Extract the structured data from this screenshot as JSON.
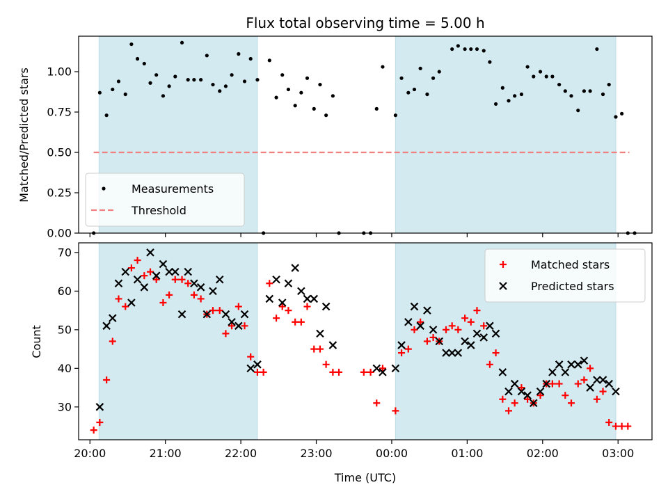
{
  "chart_data": [
    {
      "type": "scatter",
      "title": "Flux total observing time = 5.00 h",
      "xlabel": "",
      "ylabel": "Matched/Predicted stars",
      "ylim": [
        0,
        1.22
      ],
      "yticks": [
        0.0,
        0.25,
        0.5,
        0.75,
        1.0
      ],
      "ytick_labels": [
        "0.00",
        "0.25",
        "0.50",
        "0.75",
        "1.00"
      ],
      "xlim": [
        -0.15,
        7.45
      ],
      "xticks": [
        0,
        1,
        2,
        3,
        4,
        5,
        6,
        7
      ],
      "xtick_labels": [
        "",
        "",
        "",
        "",
        "",
        "",
        "",
        ""
      ],
      "shaded_regions": [
        [
          0.12,
          2.22
        ],
        [
          4.05,
          6.97
        ]
      ],
      "shade_color": "#d3eaf0",
      "legend_position": "lower-left",
      "series": [
        {
          "name": "Measurements",
          "marker": "dot",
          "color": "#000000",
          "points": [
            [
              0.05,
              0.0
            ],
            [
              0.13,
              0.87
            ],
            [
              0.22,
              0.73
            ],
            [
              0.3,
              0.89
            ],
            [
              0.38,
              0.94
            ],
            [
              0.47,
              0.86
            ],
            [
              0.55,
              1.17
            ],
            [
              0.63,
              1.08
            ],
            [
              0.72,
              1.05
            ],
            [
              0.8,
              0.93
            ],
            [
              0.88,
              0.98
            ],
            [
              0.97,
              0.85
            ],
            [
              1.05,
              0.91
            ],
            [
              1.13,
              0.97
            ],
            [
              1.22,
              1.18
            ],
            [
              1.3,
              0.95
            ],
            [
              1.38,
              0.95
            ],
            [
              1.47,
              0.95
            ],
            [
              1.55,
              1.1
            ],
            [
              1.63,
              0.92
            ],
            [
              1.72,
              0.88
            ],
            [
              1.8,
              0.91
            ],
            [
              1.88,
              0.98
            ],
            [
              1.97,
              1.11
            ],
            [
              2.05,
              0.94
            ],
            [
              2.13,
              1.08
            ],
            [
              2.22,
              0.95
            ],
            [
              2.3,
              0.0
            ],
            [
              2.38,
              1.07
            ],
            [
              2.47,
              0.84
            ],
            [
              2.55,
              0.98
            ],
            [
              2.63,
              0.89
            ],
            [
              2.72,
              0.79
            ],
            [
              2.8,
              0.87
            ],
            [
              2.88,
              0.96
            ],
            [
              2.97,
              0.77
            ],
            [
              3.05,
              0.92
            ],
            [
              3.13,
              0.73
            ],
            [
              3.22,
              0.85
            ],
            [
              3.3,
              0.0
            ],
            [
              3.63,
              0.0
            ],
            [
              3.72,
              0.0
            ],
            [
              3.8,
              0.77
            ],
            [
              3.88,
              1.03
            ],
            [
              4.05,
              0.73
            ],
            [
              4.13,
              0.96
            ],
            [
              4.22,
              0.87
            ],
            [
              4.3,
              0.89
            ],
            [
              4.38,
              1.02
            ],
            [
              4.47,
              0.86
            ],
            [
              4.55,
              0.96
            ],
            [
              4.63,
              1.0
            ],
            [
              4.8,
              1.14
            ],
            [
              4.88,
              1.16
            ],
            [
              4.97,
              1.14
            ],
            [
              5.05,
              1.14
            ],
            [
              5.13,
              1.14
            ],
            [
              5.22,
              1.13
            ],
            [
              5.3,
              1.06
            ],
            [
              5.38,
              0.8
            ],
            [
              5.47,
              0.9
            ],
            [
              5.55,
              0.82
            ],
            [
              5.63,
              0.85
            ],
            [
              5.72,
              0.86
            ],
            [
              5.8,
              1.03
            ],
            [
              5.88,
              0.97
            ],
            [
              5.97,
              1.0
            ],
            [
              6.05,
              0.97
            ],
            [
              6.13,
              0.97
            ],
            [
              6.22,
              0.92
            ],
            [
              6.3,
              0.88
            ],
            [
              6.38,
              0.85
            ],
            [
              6.47,
              0.76
            ],
            [
              6.55,
              0.88
            ],
            [
              6.63,
              0.88
            ],
            [
              6.72,
              1.14
            ],
            [
              6.8,
              0.86
            ],
            [
              6.88,
              0.92
            ],
            [
              6.97,
              0.72
            ],
            [
              7.05,
              0.74
            ],
            [
              7.13,
              0.0
            ],
            [
              7.22,
              0.0
            ]
          ]
        },
        {
          "name": "Threshold",
          "marker": "dashed-line",
          "color": "#f08080",
          "points": [
            [
              0.05,
              0.5
            ],
            [
              7.15,
              0.5
            ]
          ]
        }
      ]
    },
    {
      "type": "scatter",
      "title": "",
      "xlabel": "Time (UTC)",
      "ylabel": "Count",
      "ylim": [
        21.5,
        72.5
      ],
      "yticks": [
        30,
        40,
        50,
        60,
        70
      ],
      "ytick_labels": [
        "30",
        "40",
        "50",
        "60",
        "70"
      ],
      "xlim": [
        -0.15,
        7.45
      ],
      "xticks": [
        0,
        1,
        2,
        3,
        4,
        5,
        6,
        7
      ],
      "xtick_labels": [
        "20:00",
        "21:00",
        "22:00",
        "23:00",
        "00:00",
        "01:00",
        "02:00",
        "03:00"
      ],
      "shaded_regions": [
        [
          0.12,
          2.22
        ],
        [
          4.05,
          6.97
        ]
      ],
      "shade_color": "#d3eaf0",
      "legend_position": "upper-right",
      "series": [
        {
          "name": "Matched stars",
          "marker": "plus",
          "color": "#ff0000",
          "points": [
            [
              0.05,
              24
            ],
            [
              0.13,
              26
            ],
            [
              0.22,
              37
            ],
            [
              0.3,
              47
            ],
            [
              0.38,
              58
            ],
            [
              0.47,
              56
            ],
            [
              0.55,
              66
            ],
            [
              0.63,
              68
            ],
            [
              0.72,
              64
            ],
            [
              0.8,
              65
            ],
            [
              0.88,
              63
            ],
            [
              0.97,
              57
            ],
            [
              1.05,
              59
            ],
            [
              1.13,
              63
            ],
            [
              1.22,
              63
            ],
            [
              1.3,
              62
            ],
            [
              1.38,
              59
            ],
            [
              1.47,
              58
            ],
            [
              1.55,
              54
            ],
            [
              1.63,
              55
            ],
            [
              1.72,
              55
            ],
            [
              1.8,
              49
            ],
            [
              1.88,
              51
            ],
            [
              1.97,
              56
            ],
            [
              2.05,
              51
            ],
            [
              2.13,
              43
            ],
            [
              2.22,
              39
            ],
            [
              2.3,
              39
            ],
            [
              2.38,
              62
            ],
            [
              2.47,
              53
            ],
            [
              2.55,
              56
            ],
            [
              2.63,
              55
            ],
            [
              2.72,
              52
            ],
            [
              2.8,
              52
            ],
            [
              2.88,
              56
            ],
            [
              2.97,
              45
            ],
            [
              3.05,
              45
            ],
            [
              3.13,
              41
            ],
            [
              3.22,
              39
            ],
            [
              3.3,
              39
            ],
            [
              3.63,
              39
            ],
            [
              3.72,
              39
            ],
            [
              3.8,
              31
            ],
            [
              3.88,
              40
            ],
            [
              4.05,
              29
            ],
            [
              4.13,
              44
            ],
            [
              4.22,
              45
            ],
            [
              4.3,
              50
            ],
            [
              4.38,
              52
            ],
            [
              4.47,
              47
            ],
            [
              4.55,
              48
            ],
            [
              4.63,
              47
            ],
            [
              4.72,
              50
            ],
            [
              4.8,
              51
            ],
            [
              4.88,
              50
            ],
            [
              4.97,
              53
            ],
            [
              5.05,
              52
            ],
            [
              5.13,
              55
            ],
            [
              5.22,
              51
            ],
            [
              5.3,
              41
            ],
            [
              5.38,
              44
            ],
            [
              5.47,
              32
            ],
            [
              5.55,
              29
            ],
            [
              5.63,
              31
            ],
            [
              5.72,
              35
            ],
            [
              5.8,
              32
            ],
            [
              5.88,
              31
            ],
            [
              5.97,
              33
            ],
            [
              6.05,
              36
            ],
            [
              6.13,
              36
            ],
            [
              6.22,
              36
            ],
            [
              6.3,
              33
            ],
            [
              6.38,
              31
            ],
            [
              6.47,
              36
            ],
            [
              6.55,
              37
            ],
            [
              6.63,
              40
            ],
            [
              6.72,
              32
            ],
            [
              6.8,
              34
            ],
            [
              6.88,
              26
            ],
            [
              6.97,
              25
            ],
            [
              7.05,
              25
            ],
            [
              7.13,
              25
            ]
          ]
        },
        {
          "name": "Predicted stars",
          "marker": "x",
          "color": "#000000",
          "points": [
            [
              0.13,
              30
            ],
            [
              0.22,
              51
            ],
            [
              0.3,
              53
            ],
            [
              0.38,
              62
            ],
            [
              0.47,
              65
            ],
            [
              0.55,
              57
            ],
            [
              0.63,
              63
            ],
            [
              0.72,
              61
            ],
            [
              0.8,
              70
            ],
            [
              0.88,
              64
            ],
            [
              0.97,
              67
            ],
            [
              1.05,
              65
            ],
            [
              1.13,
              65
            ],
            [
              1.22,
              54
            ],
            [
              1.3,
              65
            ],
            [
              1.38,
              62
            ],
            [
              1.47,
              61
            ],
            [
              1.55,
              54
            ],
            [
              1.63,
              60
            ],
            [
              1.72,
              63
            ],
            [
              1.8,
              54
            ],
            [
              1.88,
              52
            ],
            [
              1.97,
              51
            ],
            [
              2.05,
              54
            ],
            [
              2.13,
              40
            ],
            [
              2.22,
              41
            ],
            [
              2.38,
              58
            ],
            [
              2.47,
              63
            ],
            [
              2.55,
              57
            ],
            [
              2.63,
              62
            ],
            [
              2.72,
              66
            ],
            [
              2.8,
              60
            ],
            [
              2.88,
              58
            ],
            [
              2.97,
              58
            ],
            [
              3.05,
              49
            ],
            [
              3.13,
              56
            ],
            [
              3.22,
              46
            ],
            [
              3.8,
              40
            ],
            [
              3.88,
              39
            ],
            [
              4.05,
              40
            ],
            [
              4.13,
              46
            ],
            [
              4.22,
              52
            ],
            [
              4.3,
              56
            ],
            [
              4.38,
              51
            ],
            [
              4.47,
              55
            ],
            [
              4.55,
              50
            ],
            [
              4.63,
              47
            ],
            [
              4.72,
              44
            ],
            [
              4.8,
              44
            ],
            [
              4.88,
              44
            ],
            [
              4.97,
              47
            ],
            [
              5.05,
              46
            ],
            [
              5.13,
              49
            ],
            [
              5.22,
              48
            ],
            [
              5.3,
              51
            ],
            [
              5.38,
              49
            ],
            [
              5.47,
              39
            ],
            [
              5.55,
              34
            ],
            [
              5.63,
              36
            ],
            [
              5.72,
              34
            ],
            [
              5.8,
              33
            ],
            [
              5.88,
              31
            ],
            [
              5.97,
              34
            ],
            [
              6.05,
              36
            ],
            [
              6.13,
              39
            ],
            [
              6.22,
              41
            ],
            [
              6.3,
              39
            ],
            [
              6.38,
              41
            ],
            [
              6.47,
              41
            ],
            [
              6.55,
              42
            ],
            [
              6.63,
              35
            ],
            [
              6.72,
              37
            ],
            [
              6.8,
              37
            ],
            [
              6.88,
              36
            ],
            [
              6.97,
              34
            ]
          ]
        }
      ]
    }
  ]
}
